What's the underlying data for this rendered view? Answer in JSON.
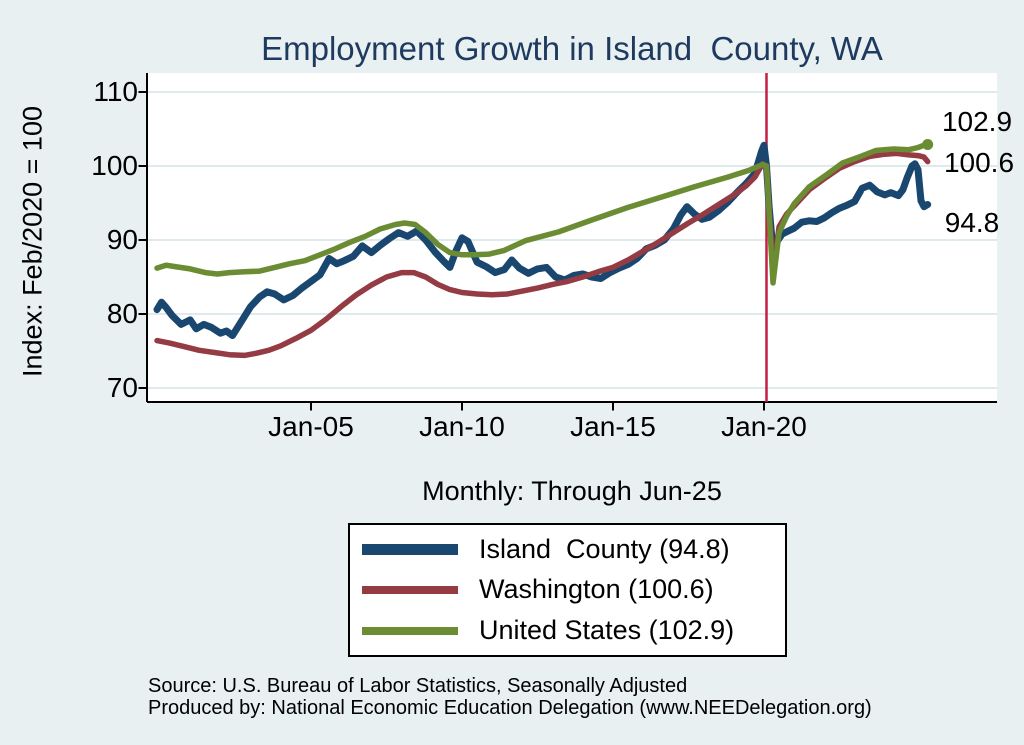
{
  "title": "Employment Growth in Island  County, WA",
  "subtitle": "Monthly: Through Jun-25",
  "y_axis": {
    "label": "Index: Feb/2020 = 100"
  },
  "end_labels": {
    "united_states": "102.9",
    "washington": "100.6",
    "island_county": "94.8"
  },
  "legend": {
    "items": [
      {
        "label": "Island  County (94.8)",
        "color": "#1a476f",
        "thickness": 11
      },
      {
        "label": "Washington (100.6)",
        "color": "#953b43",
        "thickness": 8
      },
      {
        "label": "United States (102.9)",
        "color": "#6b8c33",
        "thickness": 8
      }
    ]
  },
  "source_line1": "Source: U.S. Bureau of Labor Statistics, Seasonally Adjusted",
  "source_line2": "Produced by: National Economic Education Delegation (www.NEEDelegation.org)",
  "colors": {
    "background": "#e8f0f2",
    "plot_background": "#ffffff",
    "gridline": "#dfeaec",
    "axis": "#000000",
    "title": "#1e3a5f",
    "event_line": "#c31f45",
    "island_county": "#1a476f",
    "washington": "#953b43",
    "united_states": "#6b8c33"
  },
  "chart_data": {
    "type": "line",
    "title": "Employment Growth in Island  County, WA",
    "subtitle": "Monthly: Through Jun-25",
    "xlabel": "",
    "ylabel": "Index: Feb/2020 = 100",
    "x_unit": "decimal_year",
    "x_range": [
      1999.57,
      2027.7
    ],
    "y_range": [
      68.1,
      112.6
    ],
    "grid": "horizontal",
    "legend_position": "below",
    "y_ticks": [
      110,
      100,
      90,
      80,
      70
    ],
    "x_ticks": [
      {
        "label": "Jan-05",
        "x": 2005.0
      },
      {
        "label": "Jan-10",
        "x": 2010.0
      },
      {
        "label": "Jan-15",
        "x": 2015.0
      },
      {
        "label": "Jan-20",
        "x": 2020.0
      }
    ],
    "event_line": {
      "x": 2020.083,
      "color": "#c31f45"
    },
    "series": [
      {
        "name": "Island  County",
        "final_value": 94.8,
        "color": "#1a476f",
        "width": 7,
        "end_marker": false,
        "points": [
          [
            1999.9,
            80.6
          ],
          [
            2000.05,
            81.6
          ],
          [
            2000.2,
            80.9
          ],
          [
            2000.4,
            79.8
          ],
          [
            2000.7,
            78.6
          ],
          [
            2001.0,
            79.2
          ],
          [
            2001.2,
            78.0
          ],
          [
            2001.45,
            78.6
          ],
          [
            2001.7,
            78.2
          ],
          [
            2002.0,
            77.4
          ],
          [
            2002.2,
            77.7
          ],
          [
            2002.4,
            77.1
          ],
          [
            2002.65,
            78.7
          ],
          [
            2003.0,
            81.0
          ],
          [
            2003.3,
            82.3
          ],
          [
            2003.55,
            83.0
          ],
          [
            2003.8,
            82.7
          ],
          [
            2004.1,
            81.9
          ],
          [
            2004.4,
            82.5
          ],
          [
            2004.7,
            83.5
          ],
          [
            2005.0,
            84.4
          ],
          [
            2005.3,
            85.3
          ],
          [
            2005.6,
            87.5
          ],
          [
            2005.85,
            86.8
          ],
          [
            2006.1,
            87.2
          ],
          [
            2006.4,
            87.8
          ],
          [
            2006.7,
            89.2
          ],
          [
            2007.0,
            88.3
          ],
          [
            2007.3,
            89.3
          ],
          [
            2007.6,
            90.2
          ],
          [
            2007.9,
            91.0
          ],
          [
            2008.2,
            90.5
          ],
          [
            2008.5,
            91.2
          ],
          [
            2008.8,
            90.0
          ],
          [
            2009.1,
            88.4
          ],
          [
            2009.4,
            87.1
          ],
          [
            2009.6,
            86.3
          ],
          [
            2009.8,
            88.5
          ],
          [
            2010.0,
            90.3
          ],
          [
            2010.2,
            89.8
          ],
          [
            2010.5,
            87.0
          ],
          [
            2010.8,
            86.4
          ],
          [
            2011.1,
            85.6
          ],
          [
            2011.4,
            86.0
          ],
          [
            2011.65,
            87.3
          ],
          [
            2011.9,
            86.2
          ],
          [
            2012.2,
            85.5
          ],
          [
            2012.5,
            86.1
          ],
          [
            2012.8,
            86.3
          ],
          [
            2013.1,
            85.0
          ],
          [
            2013.4,
            84.6
          ],
          [
            2013.7,
            85.2
          ],
          [
            2014.0,
            85.4
          ],
          [
            2014.3,
            85.0
          ],
          [
            2014.6,
            84.8
          ],
          [
            2014.9,
            85.6
          ],
          [
            2015.2,
            86.2
          ],
          [
            2015.5,
            86.7
          ],
          [
            2015.8,
            87.5
          ],
          [
            2016.1,
            88.8
          ],
          [
            2016.4,
            89.3
          ],
          [
            2016.7,
            90.0
          ],
          [
            2017.0,
            91.5
          ],
          [
            2017.25,
            93.4
          ],
          [
            2017.45,
            94.5
          ],
          [
            2017.7,
            93.5
          ],
          [
            2017.95,
            92.8
          ],
          [
            2018.2,
            93.1
          ],
          [
            2018.5,
            94.0
          ],
          [
            2018.8,
            95.1
          ],
          [
            2019.1,
            96.4
          ],
          [
            2019.4,
            97.6
          ],
          [
            2019.7,
            99.0
          ],
          [
            2019.92,
            102.0
          ],
          [
            2020.0,
            102.8
          ],
          [
            2020.083,
            100.0
          ],
          [
            2020.17,
            94.5
          ],
          [
            2020.3,
            88.6
          ],
          [
            2020.45,
            89.9
          ],
          [
            2020.6,
            90.8
          ],
          [
            2020.8,
            91.2
          ],
          [
            2021.0,
            91.6
          ],
          [
            2021.25,
            92.4
          ],
          [
            2021.5,
            92.6
          ],
          [
            2021.75,
            92.5
          ],
          [
            2022.0,
            93.0
          ],
          [
            2022.25,
            93.7
          ],
          [
            2022.5,
            94.3
          ],
          [
            2022.75,
            94.7
          ],
          [
            2023.0,
            95.2
          ],
          [
            2023.25,
            97.0
          ],
          [
            2023.5,
            97.4
          ],
          [
            2023.75,
            96.5
          ],
          [
            2024.0,
            96.1
          ],
          [
            2024.2,
            96.4
          ],
          [
            2024.45,
            96.0
          ],
          [
            2024.6,
            96.8
          ],
          [
            2024.75,
            98.5
          ],
          [
            2024.9,
            100.0
          ],
          [
            2025.0,
            100.3
          ],
          [
            2025.1,
            99.5
          ],
          [
            2025.2,
            95.3
          ],
          [
            2025.3,
            94.5
          ],
          [
            2025.42,
            94.8
          ]
        ]
      },
      {
        "name": "Washington",
        "final_value": 100.6,
        "color": "#953b43",
        "width": 5.5,
        "end_marker": false,
        "points": [
          [
            1999.9,
            76.4
          ],
          [
            2000.3,
            76.1
          ],
          [
            2000.8,
            75.6
          ],
          [
            2001.3,
            75.1
          ],
          [
            2001.8,
            74.8
          ],
          [
            2002.3,
            74.5
          ],
          [
            2002.8,
            74.4
          ],
          [
            2003.2,
            74.7
          ],
          [
            2003.6,
            75.1
          ],
          [
            2004.0,
            75.7
          ],
          [
            2004.5,
            76.7
          ],
          [
            2005.0,
            77.8
          ],
          [
            2005.5,
            79.3
          ],
          [
            2006.0,
            81.0
          ],
          [
            2006.5,
            82.6
          ],
          [
            2007.0,
            83.9
          ],
          [
            2007.5,
            85.0
          ],
          [
            2008.0,
            85.6
          ],
          [
            2008.4,
            85.6
          ],
          [
            2008.8,
            85.0
          ],
          [
            2009.2,
            84.0
          ],
          [
            2009.6,
            83.3
          ],
          [
            2010.0,
            82.9
          ],
          [
            2010.5,
            82.7
          ],
          [
            2011.0,
            82.6
          ],
          [
            2011.5,
            82.7
          ],
          [
            2012.0,
            83.1
          ],
          [
            2012.5,
            83.5
          ],
          [
            2013.0,
            84.0
          ],
          [
            2013.5,
            84.4
          ],
          [
            2014.0,
            85.0
          ],
          [
            2014.5,
            85.7
          ],
          [
            2015.0,
            86.3
          ],
          [
            2015.5,
            87.3
          ],
          [
            2016.0,
            88.5
          ],
          [
            2016.5,
            89.7
          ],
          [
            2017.0,
            91.0
          ],
          [
            2017.5,
            92.3
          ],
          [
            2018.0,
            93.5
          ],
          [
            2018.5,
            94.8
          ],
          [
            2019.0,
            96.1
          ],
          [
            2019.4,
            97.3
          ],
          [
            2019.7,
            98.5
          ],
          [
            2019.95,
            100.3
          ],
          [
            2020.083,
            100.0
          ],
          [
            2020.3,
            85.8
          ],
          [
            2020.5,
            91.8
          ],
          [
            2020.75,
            93.5
          ],
          [
            2021.0,
            94.6
          ],
          [
            2021.5,
            96.8
          ],
          [
            2022.0,
            98.3
          ],
          [
            2022.5,
            99.7
          ],
          [
            2023.0,
            100.6
          ],
          [
            2023.5,
            101.3
          ],
          [
            2024.0,
            101.6
          ],
          [
            2024.4,
            101.7
          ],
          [
            2024.8,
            101.5
          ],
          [
            2025.1,
            101.4
          ],
          [
            2025.3,
            101.2
          ],
          [
            2025.42,
            100.6
          ]
        ]
      },
      {
        "name": "United States",
        "final_value": 102.9,
        "color": "#6b8c33",
        "width": 5.5,
        "end_marker": true,
        "points": [
          [
            1999.9,
            86.2
          ],
          [
            2000.2,
            86.6
          ],
          [
            2000.5,
            86.4
          ],
          [
            2001.0,
            86.1
          ],
          [
            2001.5,
            85.6
          ],
          [
            2001.9,
            85.4
          ],
          [
            2002.3,
            85.6
          ],
          [
            2002.8,
            85.7
          ],
          [
            2003.3,
            85.8
          ],
          [
            2003.8,
            86.3
          ],
          [
            2004.3,
            86.8
          ],
          [
            2004.8,
            87.2
          ],
          [
            2005.3,
            88.0
          ],
          [
            2005.8,
            88.8
          ],
          [
            2006.3,
            89.7
          ],
          [
            2006.8,
            90.5
          ],
          [
            2007.3,
            91.5
          ],
          [
            2007.8,
            92.1
          ],
          [
            2008.1,
            92.3
          ],
          [
            2008.45,
            92.1
          ],
          [
            2008.8,
            91.0
          ],
          [
            2009.2,
            89.4
          ],
          [
            2009.6,
            88.3
          ],
          [
            2010.0,
            88.0
          ],
          [
            2010.4,
            88.0
          ],
          [
            2010.9,
            88.1
          ],
          [
            2011.4,
            88.6
          ],
          [
            2012.1,
            89.9
          ],
          [
            2013.2,
            91.1
          ],
          [
            2014.3,
            92.7
          ],
          [
            2015.5,
            94.4
          ],
          [
            2016.6,
            95.8
          ],
          [
            2017.7,
            97.2
          ],
          [
            2018.8,
            98.5
          ],
          [
            2019.5,
            99.4
          ],
          [
            2019.95,
            100.2
          ],
          [
            2020.083,
            100.0
          ],
          [
            2020.3,
            84.2
          ],
          [
            2020.5,
            91.0
          ],
          [
            2020.75,
            93.2
          ],
          [
            2021.0,
            94.9
          ],
          [
            2021.5,
            97.2
          ],
          [
            2022.1,
            98.9
          ],
          [
            2022.6,
            100.4
          ],
          [
            2023.2,
            101.3
          ],
          [
            2023.7,
            102.1
          ],
          [
            2024.3,
            102.3
          ],
          [
            2024.8,
            102.2
          ],
          [
            2025.1,
            102.5
          ],
          [
            2025.3,
            102.8
          ],
          [
            2025.42,
            102.9
          ]
        ]
      }
    ]
  }
}
